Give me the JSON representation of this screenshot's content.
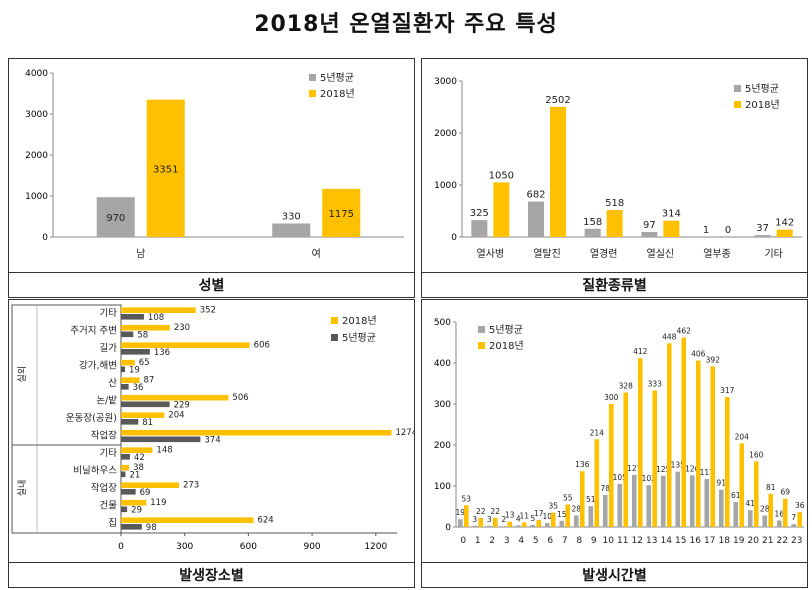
{
  "title": "2018년 온열질환자 주요 특성",
  "colors": {
    "avg": "#a6a6a6",
    "y2018": "#ffc000",
    "avg_dark": "#595959"
  },
  "chart_data": [
    {
      "id": "gender",
      "caption": "성별",
      "type": "bar",
      "categories": [
        "남",
        "여"
      ],
      "series": [
        {
          "name": "5년평균",
          "values": [
            970,
            330
          ]
        },
        {
          "name": "2018년",
          "values": [
            3351,
            1175
          ]
        }
      ],
      "yticks": [
        "0",
        "1000",
        "2000",
        "3000",
        "4000"
      ],
      "ylim": [
        0,
        4000
      ],
      "legend": "top-right"
    },
    {
      "id": "type",
      "caption": "질환종류별",
      "type": "bar",
      "categories": [
        "열사병",
        "열탈진",
        "열경련",
        "열실신",
        "열부종",
        "기타"
      ],
      "series": [
        {
          "name": "5년평균",
          "values": [
            325,
            682,
            158,
            97,
            1,
            37
          ]
        },
        {
          "name": "2018년",
          "values": [
            1050,
            2502,
            518,
            314,
            0,
            142
          ]
        }
      ],
      "yticks": [
        "0",
        "1000",
        "2000",
        "3000"
      ],
      "ylim": [
        0,
        3000
      ],
      "legend": "top-right"
    },
    {
      "id": "place",
      "caption": "발생장소별",
      "type": "bar",
      "orientation": "horizontal",
      "groups": [
        {
          "name": "실외",
          "categories": [
            "기타",
            "주거지 주변",
            "길가",
            "강가,해변",
            "산",
            "논/밭",
            "운동장(공원)",
            "작업장"
          ]
        },
        {
          "name": "실내",
          "categories": [
            "기타",
            "비닐하우스",
            "작업장",
            "건물",
            "집"
          ]
        }
      ],
      "series": [
        {
          "name": "2018년",
          "values": [
            352,
            230,
            606,
            65,
            87,
            506,
            204,
            1274,
            148,
            38,
            273,
            119,
            624
          ]
        },
        {
          "name": "5년평균",
          "values": [
            108,
            58,
            136,
            19,
            36,
            229,
            81,
            374,
            42,
            21,
            69,
            29,
            98
          ]
        }
      ],
      "xticks": [
        "0",
        "300",
        "600",
        "900",
        "1200"
      ],
      "xlim": [
        0,
        1300
      ],
      "legend": "top-right"
    },
    {
      "id": "hour",
      "caption": "발생시간별",
      "type": "bar",
      "categories": [
        "0",
        "1",
        "2",
        "3",
        "4",
        "5",
        "6",
        "7",
        "8",
        "9",
        "10",
        "11",
        "12",
        "13",
        "14",
        "15",
        "16",
        "17",
        "18",
        "19",
        "20",
        "21",
        "22",
        "23"
      ],
      "series": [
        {
          "name": "5년평균",
          "values": [
            19,
            3,
            3,
            2,
            4,
            5,
            10,
            15,
            28,
            51,
            78,
            105,
            127,
            102,
            125,
            135,
            126,
            117,
            91,
            61,
            41,
            28,
            16,
            7
          ]
        },
        {
          "name": "2018년",
          "values": [
            53,
            22,
            22,
            13,
            11,
            17,
            35,
            55,
            136,
            214,
            300,
            328,
            412,
            333,
            448,
            462,
            406,
            392,
            317,
            204,
            160,
            81,
            69,
            36
          ]
        }
      ],
      "yticks": [
        "0",
        "100",
        "200",
        "300",
        "400",
        "500"
      ],
      "ylim": [
        0,
        500
      ],
      "legend": "top-left"
    }
  ]
}
